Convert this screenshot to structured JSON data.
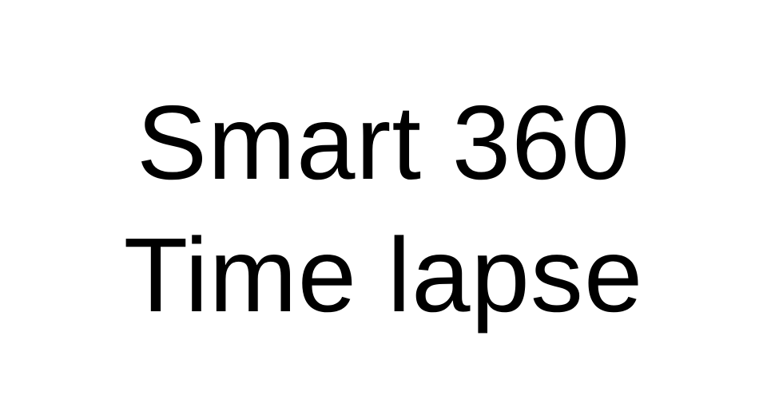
{
  "title": {
    "line1": "Smart 360",
    "line2": "Time lapse"
  },
  "colors": {
    "background": "#ffffff",
    "text": "#000000"
  }
}
